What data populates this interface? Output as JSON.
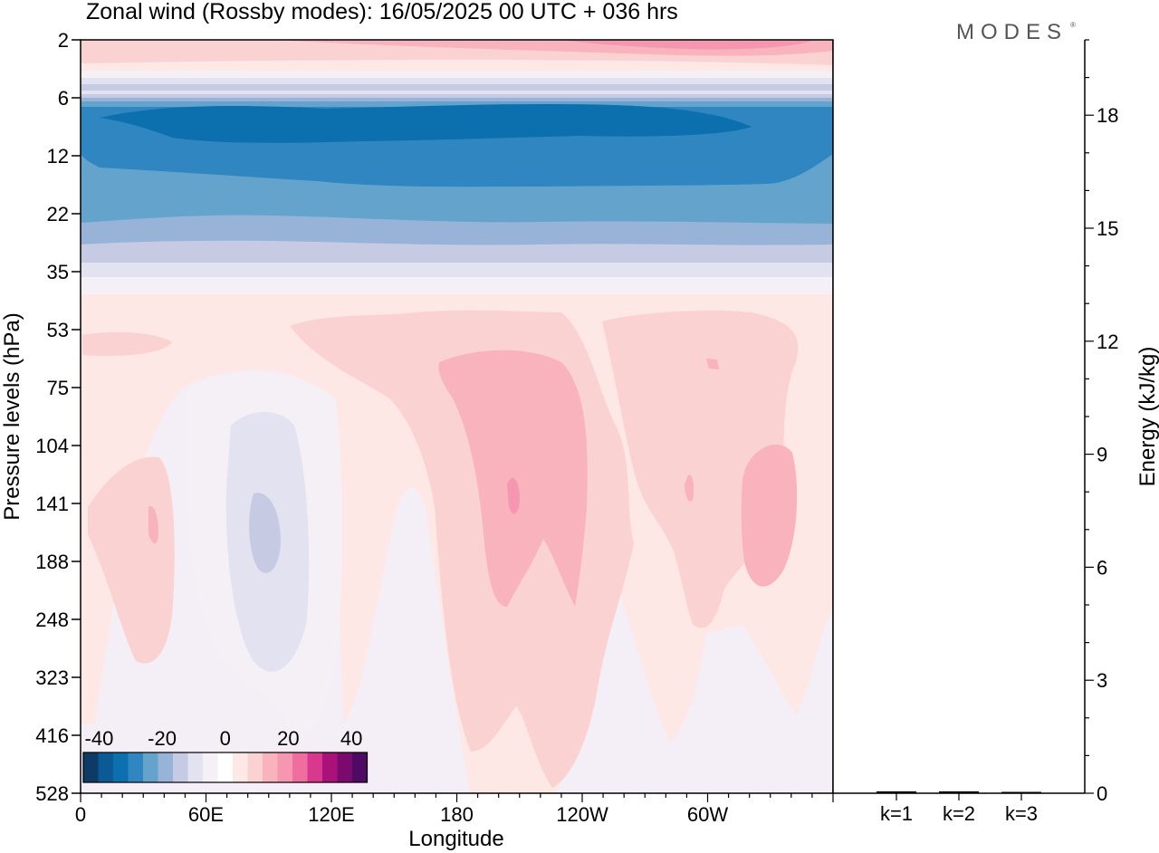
{
  "title": "Zonal wind (Rossby modes):  16/05/2025  00 UTC  + 036 hrs",
  "logo": "MODES",
  "logo_mark": "®",
  "chart_data": [
    {
      "type": "heatmap",
      "xlabel": "Longitude",
      "ylabel": "Pressure levels (hPa)",
      "x_ticks": [
        "0",
        "60E",
        "120E",
        "180",
        "120W",
        "60W"
      ],
      "x_tick_values": [
        0,
        60,
        120,
        180,
        240,
        300
      ],
      "xlim": [
        0,
        360
      ],
      "y_ticks": [
        "2",
        "6",
        "12",
        "22",
        "35",
        "53",
        "75",
        "104",
        "141",
        "188",
        "248",
        "323",
        "416",
        "528"
      ],
      "colorbar": {
        "tick_labels": [
          "-40",
          "-20",
          "0",
          "20",
          "40"
        ],
        "tick_values": [
          -40,
          -20,
          0,
          20,
          40
        ],
        "range": [
          -45,
          45
        ],
        "colors": [
          "#0d3b66",
          "#0a5a96",
          "#0c6fae",
          "#2f86c1",
          "#64a4cc",
          "#97b3d7",
          "#c6cbe3",
          "#e2e2f0",
          "#f4f0f6",
          "#ffffff",
          "#fde8e6",
          "#fbd2d2",
          "#f8b3bd",
          "#f597b0",
          "#f06da0",
          "#d9398c",
          "#ab117b",
          "#7b0a6f",
          "#4e0a64"
        ]
      },
      "bands": [
        {
          "level_from": "2",
          "level_to": "6",
          "value": 12
        },
        {
          "level_from": "6",
          "level_to": "22",
          "value": -28
        },
        {
          "level_from": "22",
          "level_to": "35",
          "value": -15
        },
        {
          "level_from": "35",
          "level_to": "528",
          "value": 3
        }
      ],
      "features": [
        {
          "region": "60E-120E",
          "levels": "75-416",
          "value": -5,
          "core": -12
        },
        {
          "region": "20E-50E",
          "levels": "104-323",
          "value": 5,
          "core": 10
        },
        {
          "region": "170E-130W",
          "levels": "53-416",
          "value": 8,
          "core": 15
        },
        {
          "region": "110W-70W",
          "levels": "53-248",
          "value": 7
        },
        {
          "region": "60W-20W",
          "levels": "104-323",
          "value": 10
        }
      ]
    },
    {
      "type": "bar",
      "ylabel": "Energy (kJ/kg)",
      "categories": [
        "k=1",
        "k=2",
        "k=3"
      ],
      "values": [
        0.05,
        0.05,
        0.03
      ],
      "ylim": [
        0,
        20
      ],
      "y_ticks": [
        "0",
        "3",
        "6",
        "9",
        "12",
        "15",
        "18"
      ],
      "y_tick_values": [
        0,
        3,
        6,
        9,
        12,
        15,
        18
      ],
      "bar_color": "#000000"
    }
  ]
}
